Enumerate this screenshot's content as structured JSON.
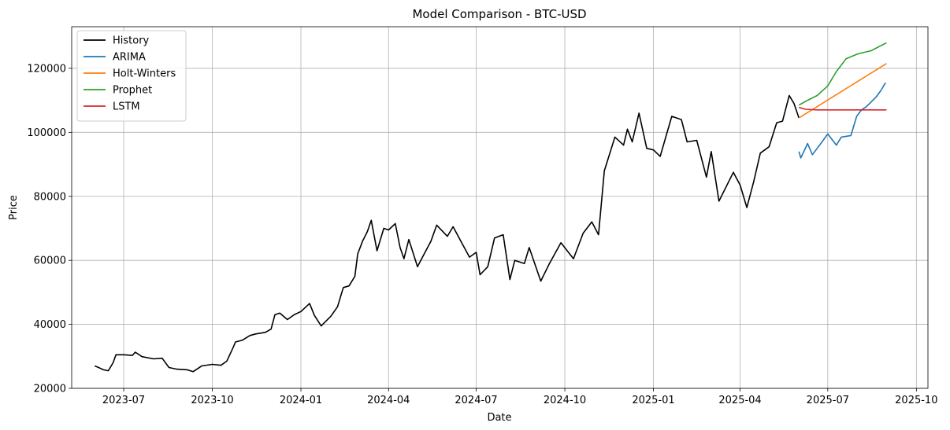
{
  "chart_data": {
    "type": "line",
    "title": "Model Comparison - BTC-USD",
    "xlabel": "Date",
    "ylabel": "Price",
    "xlim": [
      "2023-05-08",
      "2025-10-13"
    ],
    "ylim": [
      20000,
      133000
    ],
    "x_ticks": [
      "2023-07-01",
      "2023-10-01",
      "2024-01-01",
      "2024-04-01",
      "2024-07-01",
      "2024-10-01",
      "2025-01-01",
      "2025-04-01",
      "2025-07-01",
      "2025-10-01"
    ],
    "x_tick_labels": [
      "2023-07",
      "2023-10",
      "2024-01",
      "2024-04",
      "2024-07",
      "2024-10",
      "2025-01",
      "2025-04",
      "2025-07",
      "2025-10"
    ],
    "y_ticks": [
      20000,
      40000,
      60000,
      80000,
      100000,
      120000
    ],
    "y_tick_labels": [
      "20000",
      "40000",
      "60000",
      "80000",
      "100000",
      "120000"
    ],
    "grid": true,
    "legend_position": "top-left",
    "series": [
      {
        "name": "History",
        "color": "#000000",
        "points": [
          [
            "2023-06-01",
            27000
          ],
          [
            "2023-06-05",
            26500
          ],
          [
            "2023-06-10",
            25800
          ],
          [
            "2023-06-15",
            25500
          ],
          [
            "2023-06-20",
            28000
          ],
          [
            "2023-06-23",
            30500
          ],
          [
            "2023-07-01",
            30500
          ],
          [
            "2023-07-10",
            30300
          ],
          [
            "2023-07-13",
            31300
          ],
          [
            "2023-07-20",
            29900
          ],
          [
            "2023-08-01",
            29200
          ],
          [
            "2023-08-10",
            29400
          ],
          [
            "2023-08-17",
            26500
          ],
          [
            "2023-08-25",
            26000
          ],
          [
            "2023-09-05",
            25800
          ],
          [
            "2023-09-11",
            25200
          ],
          [
            "2023-09-20",
            27000
          ],
          [
            "2023-10-01",
            27500
          ],
          [
            "2023-10-10",
            27200
          ],
          [
            "2023-10-16",
            28500
          ],
          [
            "2023-10-23",
            33000
          ],
          [
            "2023-10-25",
            34500
          ],
          [
            "2023-11-01",
            35000
          ],
          [
            "2023-11-09",
            36500
          ],
          [
            "2023-11-15",
            37000
          ],
          [
            "2023-11-25",
            37500
          ],
          [
            "2023-12-01",
            38500
          ],
          [
            "2023-12-05",
            43000
          ],
          [
            "2023-12-10",
            43500
          ],
          [
            "2023-12-18",
            41500
          ],
          [
            "2023-12-25",
            43000
          ],
          [
            "2024-01-01",
            44000
          ],
          [
            "2024-01-10",
            46500
          ],
          [
            "2024-01-15",
            42800
          ],
          [
            "2024-01-22",
            39500
          ],
          [
            "2024-02-01",
            42500
          ],
          [
            "2024-02-08",
            45500
          ],
          [
            "2024-02-14",
            51500
          ],
          [
            "2024-02-20",
            52000
          ],
          [
            "2024-02-26",
            55000
          ],
          [
            "2024-02-29",
            62000
          ],
          [
            "2024-03-05",
            66000
          ],
          [
            "2024-03-10",
            69000
          ],
          [
            "2024-03-14",
            72500
          ],
          [
            "2024-03-20",
            63000
          ],
          [
            "2024-03-27",
            70000
          ],
          [
            "2024-04-01",
            69500
          ],
          [
            "2024-04-08",
            71500
          ],
          [
            "2024-04-13",
            64000
          ],
          [
            "2024-04-17",
            60500
          ],
          [
            "2024-04-22",
            66500
          ],
          [
            "2024-05-01",
            58000
          ],
          [
            "2024-05-08",
            62000
          ],
          [
            "2024-05-15",
            66000
          ],
          [
            "2024-05-21",
            71000
          ],
          [
            "2024-06-01",
            67500
          ],
          [
            "2024-06-07",
            70500
          ],
          [
            "2024-06-15",
            66000
          ],
          [
            "2024-06-24",
            61000
          ],
          [
            "2024-07-01",
            62500
          ],
          [
            "2024-07-05",
            55500
          ],
          [
            "2024-07-13",
            58000
          ],
          [
            "2024-07-20",
            67000
          ],
          [
            "2024-07-29",
            68000
          ],
          [
            "2024-08-05",
            54000
          ],
          [
            "2024-08-10",
            60000
          ],
          [
            "2024-08-20",
            59000
          ],
          [
            "2024-08-25",
            64000
          ],
          [
            "2024-09-06",
            53500
          ],
          [
            "2024-09-15",
            59000
          ],
          [
            "2024-09-27",
            65500
          ],
          [
            "2024-10-10",
            60500
          ],
          [
            "2024-10-20",
            68500
          ],
          [
            "2024-10-29",
            72000
          ],
          [
            "2024-11-05",
            68000
          ],
          [
            "2024-11-11",
            88000
          ],
          [
            "2024-11-22",
            98500
          ],
          [
            "2024-12-01",
            96000
          ],
          [
            "2024-12-05",
            101000
          ],
          [
            "2024-12-10",
            97000
          ],
          [
            "2024-12-17",
            106000
          ],
          [
            "2024-12-25",
            95000
          ],
          [
            "2025-01-01",
            94500
          ],
          [
            "2025-01-08",
            92500
          ],
          [
            "2025-01-20",
            105000
          ],
          [
            "2025-01-30",
            104000
          ],
          [
            "2025-02-05",
            97000
          ],
          [
            "2025-02-15",
            97500
          ],
          [
            "2025-02-25",
            86000
          ],
          [
            "2025-03-02",
            94000
          ],
          [
            "2025-03-10",
            78500
          ],
          [
            "2025-03-25",
            87500
          ],
          [
            "2025-04-01",
            83500
          ],
          [
            "2025-04-08",
            76500
          ],
          [
            "2025-04-15",
            84500
          ],
          [
            "2025-04-22",
            93500
          ],
          [
            "2025-05-01",
            95500
          ],
          [
            "2025-05-09",
            103000
          ],
          [
            "2025-05-15",
            103500
          ],
          [
            "2025-05-22",
            111500
          ],
          [
            "2025-05-27",
            109000
          ],
          [
            "2025-06-01",
            104500
          ]
        ]
      },
      {
        "name": "ARIMA",
        "color": "#1f77b4",
        "points": [
          [
            "2025-06-01",
            94000
          ],
          [
            "2025-06-03",
            92000
          ],
          [
            "2025-06-10",
            96500
          ],
          [
            "2025-06-15",
            93000
          ],
          [
            "2025-06-25",
            97000
          ],
          [
            "2025-07-01",
            99500
          ],
          [
            "2025-07-10",
            96000
          ],
          [
            "2025-07-15",
            98500
          ],
          [
            "2025-07-25",
            99000
          ],
          [
            "2025-07-31",
            105000
          ],
          [
            "2025-08-05",
            107000
          ],
          [
            "2025-08-10",
            108000
          ],
          [
            "2025-08-15",
            109500
          ],
          [
            "2025-08-20",
            111000
          ],
          [
            "2025-08-25",
            113000
          ],
          [
            "2025-08-30",
            115500
          ]
        ]
      },
      {
        "name": "Holt-Winters",
        "color": "#ff7f0e",
        "points": [
          [
            "2025-06-01",
            104500
          ],
          [
            "2025-08-31",
            121500
          ]
        ]
      },
      {
        "name": "Prophet",
        "color": "#2ca02c",
        "points": [
          [
            "2025-06-01",
            108500
          ],
          [
            "2025-06-10",
            110000
          ],
          [
            "2025-06-20",
            111500
          ],
          [
            "2025-07-01",
            114500
          ],
          [
            "2025-07-10",
            119000
          ],
          [
            "2025-07-20",
            123000
          ],
          [
            "2025-08-01",
            124500
          ],
          [
            "2025-08-15",
            125500
          ],
          [
            "2025-08-31",
            128000
          ]
        ]
      },
      {
        "name": "LSTM",
        "color": "#d62728",
        "points": [
          [
            "2025-06-01",
            107800
          ],
          [
            "2025-06-08",
            107200
          ],
          [
            "2025-06-20",
            107000
          ],
          [
            "2025-08-31",
            107000
          ]
        ]
      }
    ]
  }
}
